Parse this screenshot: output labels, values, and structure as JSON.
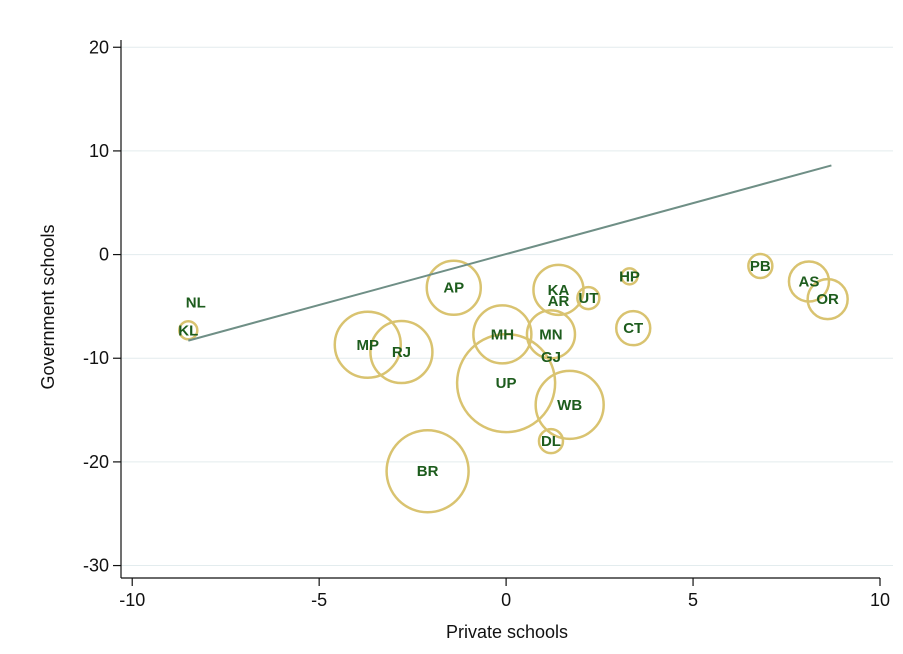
{
  "chart_data": {
    "type": "scatter",
    "x_label": "Private schools",
    "y_label": "Government schools",
    "labels": [
      "NL",
      "KL",
      "AP",
      "MP",
      "RJ",
      "MH",
      "UP",
      "BR",
      "KA",
      "AR",
      "UT",
      "HP",
      "MN",
      "GJ",
      "CT",
      "WB",
      "DL",
      "PB",
      "AS",
      "OR"
    ],
    "x": [
      -8.3,
      -8.5,
      -1.4,
      -3.7,
      -2.8,
      -0.1,
      0,
      -2.1,
      1.4,
      1.4,
      2.2,
      3.3,
      1.2,
      1.2,
      3.4,
      1.7,
      1.2,
      6.8,
      8.1,
      8.6
    ],
    "y": [
      -4.6,
      -7.3,
      -3.2,
      -8.7,
      -9.4,
      -7.7,
      -12.4,
      -20.9,
      -3.4,
      -4.5,
      -4.2,
      -2.1,
      -7.7,
      -9.9,
      -7.1,
      -14.5,
      -18,
      -1.1,
      -2.6,
      -4.3
    ],
    "sizes": [
      0,
      9,
      27,
      33,
      31,
      29,
      49,
      41,
      25,
      0,
      11,
      8,
      24,
      0,
      17,
      34,
      12,
      12,
      20,
      20
    ],
    "color": "#d9c370",
    "label_color": "#1d5c1d",
    "fit": {
      "x": [
        -8.5,
        8.7
      ],
      "y": [
        -8.3,
        8.6
      ],
      "color": "#6f8f86"
    },
    "xlim": [
      -10.3,
      10
    ],
    "ylim": [
      -31.2,
      20.7
    ],
    "xticks": [
      -10,
      -5,
      0,
      5,
      10
    ],
    "yticks": [
      -30,
      -20,
      -10,
      0,
      10,
      20
    ],
    "grid": true
  }
}
